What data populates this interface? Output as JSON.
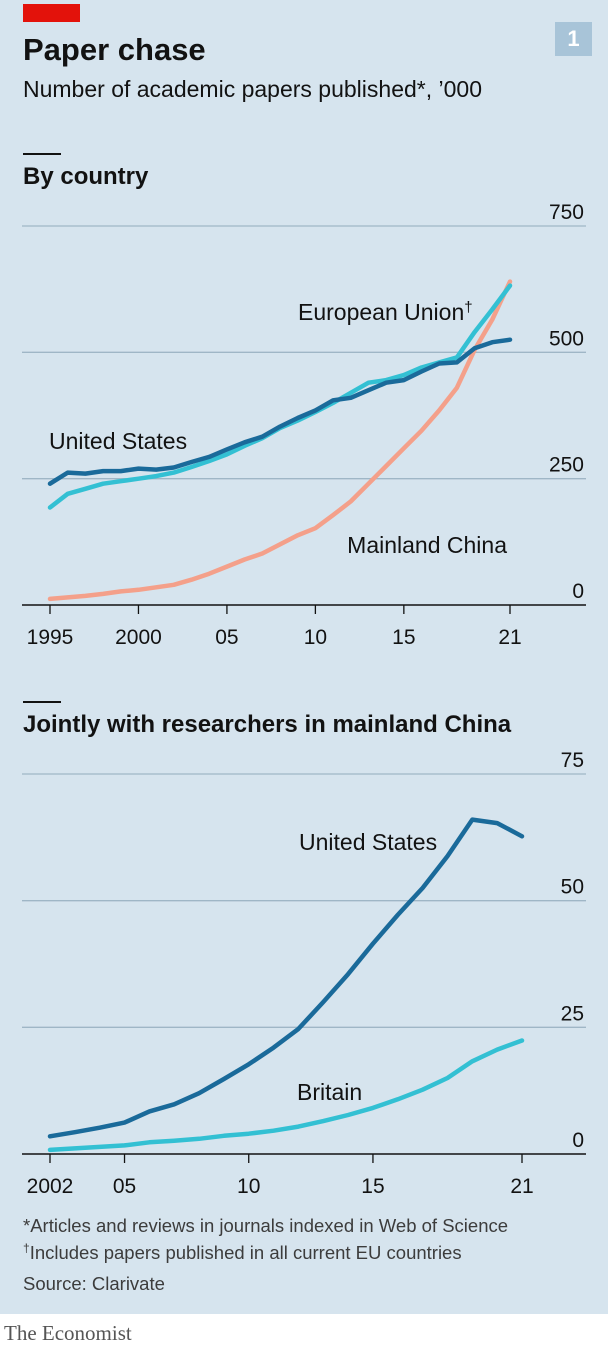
{
  "header": {
    "badge": "1",
    "title": "Paper chase",
    "subtitle": "Number of academic papers published*, ’000"
  },
  "footer": {
    "note1": "*Articles and reviews in journals indexed in Web of Science",
    "note2_mark": "†",
    "note2": "Includes papers published in all current EU countries",
    "source": "Source: Clarivate",
    "brand": "The Economist"
  },
  "colors": {
    "background": "#d6e4ee",
    "united_states": "#1a6a9a",
    "european_union": "#33c0d3",
    "mainland_china": "#f4a08a",
    "britain": "#33c0d3",
    "accent_red": "#e3120b"
  },
  "chart_data": [
    {
      "type": "line",
      "title": "By country",
      "ylim": [
        0,
        750
      ],
      "yticks": [
        0,
        250,
        500,
        750
      ],
      "xlim": [
        1995,
        2021
      ],
      "xticks": [
        1995,
        2000,
        2005,
        2010,
        2015,
        2021
      ],
      "xtick_labels": [
        "1995",
        "2000",
        "05",
        "10",
        "15",
        "21"
      ],
      "grid": true,
      "x": [
        1995,
        1996,
        1997,
        1998,
        1999,
        2000,
        2001,
        2002,
        2003,
        2004,
        2005,
        2006,
        2007,
        2008,
        2009,
        2010,
        2011,
        2012,
        2013,
        2014,
        2015,
        2016,
        2017,
        2018,
        2019,
        2020,
        2021
      ],
      "series": [
        {
          "name": "Mainland China",
          "color": "#f4a08a",
          "values": [
            12,
            15,
            18,
            22,
            27,
            30,
            35,
            40,
            50,
            62,
            76,
            90,
            102,
            120,
            138,
            152,
            178,
            205,
            240,
            275,
            310,
            345,
            385,
            430,
            505,
            565,
            640
          ]
        },
        {
          "name": "European Union",
          "name_mark": "†",
          "color": "#33c0d3",
          "values": [
            193,
            220,
            230,
            240,
            245,
            250,
            255,
            262,
            273,
            285,
            298,
            315,
            330,
            350,
            365,
            382,
            400,
            420,
            440,
            445,
            455,
            470,
            480,
            490,
            540,
            585,
            632
          ]
        },
        {
          "name": "United States",
          "color": "#1a6a9a",
          "values": [
            240,
            262,
            260,
            265,
            265,
            270,
            268,
            272,
            283,
            293,
            308,
            322,
            333,
            353,
            370,
            385,
            405,
            410,
            425,
            440,
            445,
            462,
            478,
            480,
            508,
            520,
            525
          ]
        }
      ]
    },
    {
      "type": "line",
      "title": "Jointly with researchers in mainland China",
      "ylim": [
        0,
        75
      ],
      "yticks": [
        0,
        25,
        50,
        75
      ],
      "xlim": [
        2002,
        2021
      ],
      "xticks": [
        2002,
        2005,
        2010,
        2015,
        2021
      ],
      "xtick_labels": [
        "2002",
        "05",
        "10",
        "15",
        "21"
      ],
      "grid": true,
      "x": [
        2002,
        2003,
        2004,
        2005,
        2006,
        2007,
        2008,
        2009,
        2010,
        2011,
        2012,
        2013,
        2014,
        2015,
        2016,
        2017,
        2018,
        2019,
        2020,
        2021
      ],
      "series": [
        {
          "name": "United States",
          "color": "#1a6a9a",
          "values": [
            3.5,
            4.3,
            5.2,
            6.2,
            8.4,
            9.8,
            12.0,
            14.8,
            17.7,
            21.0,
            24.7,
            30.0,
            35.5,
            41.5,
            47.2,
            52.5,
            58.8,
            66.0,
            65.3,
            62.7
          ]
        },
        {
          "name": "Britain",
          "color": "#33c0d3",
          "values": [
            0.8,
            1.1,
            1.4,
            1.7,
            2.3,
            2.6,
            3.0,
            3.6,
            4.0,
            4.6,
            5.4,
            6.5,
            7.7,
            9.1,
            10.8,
            12.7,
            15.0,
            18.3,
            20.6,
            22.4
          ]
        }
      ]
    }
  ]
}
